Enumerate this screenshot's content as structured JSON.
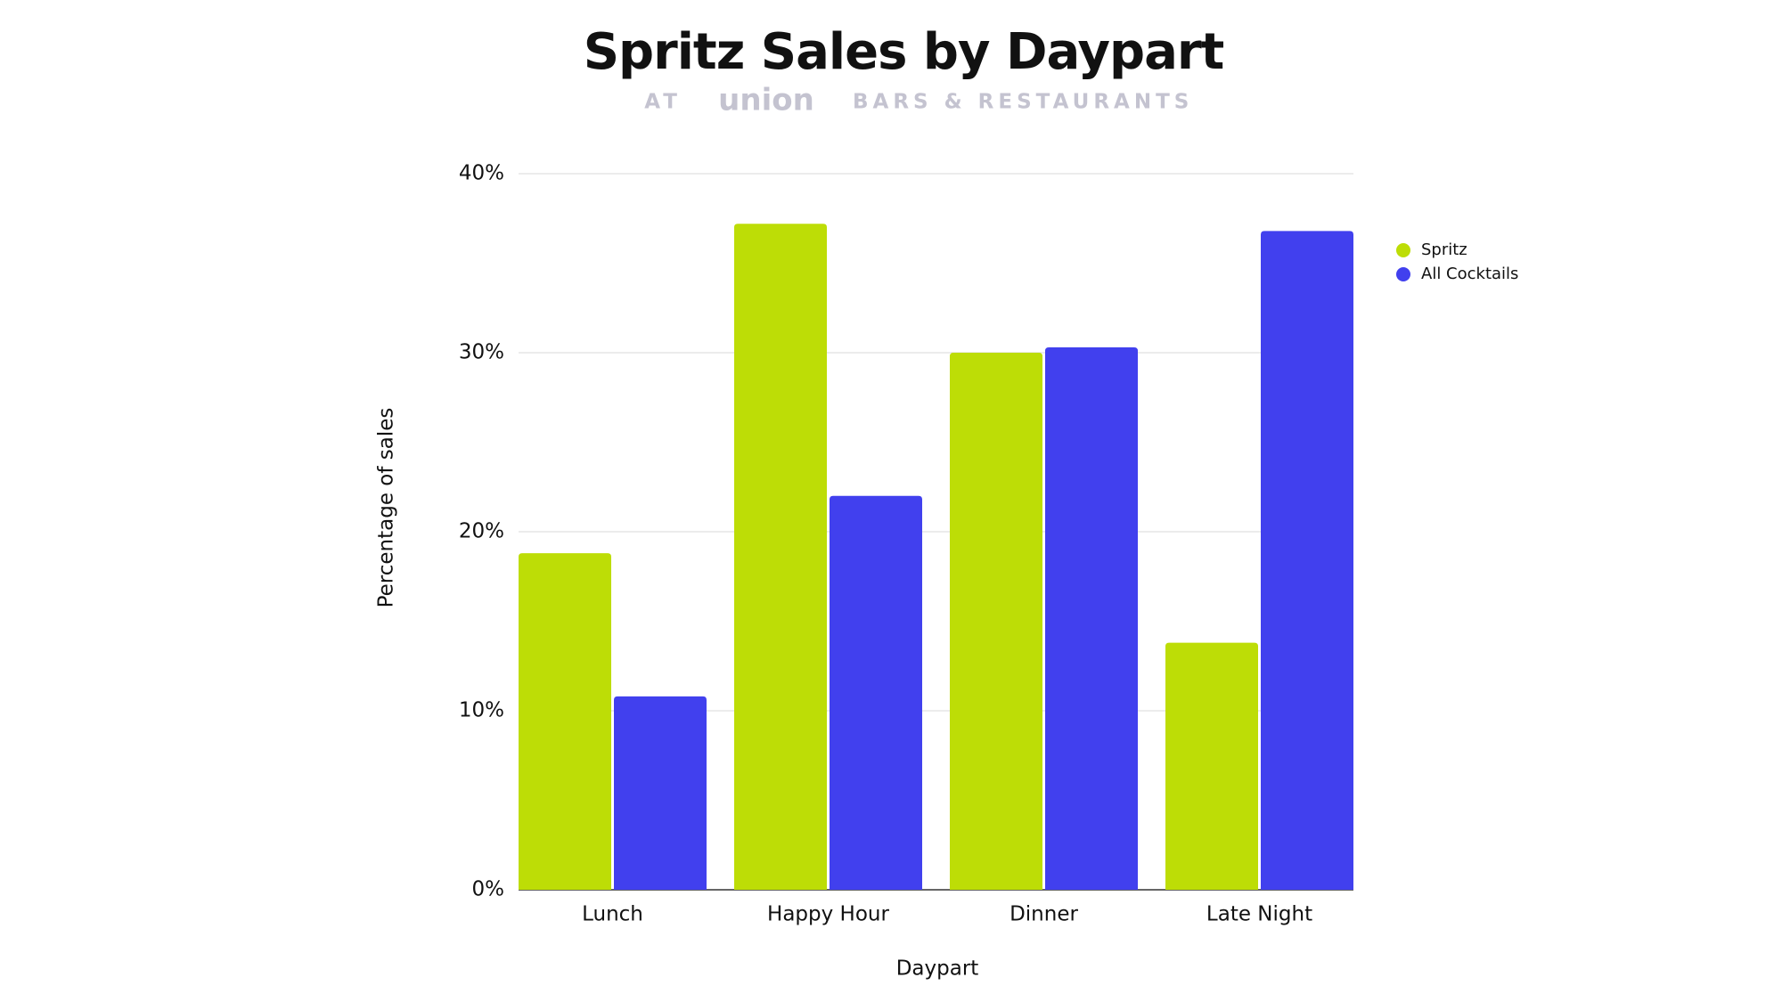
{
  "chart_data": {
    "type": "bar",
    "title": "Spritz Sales by Daypart",
    "subtitle": [
      "AT",
      "union",
      "BARS & RESTAURANTS"
    ],
    "x_label": "Daypart",
    "y_label": "Percentage of sales",
    "categories": [
      "Lunch",
      "Happy Hour",
      "Dinner",
      "Late Night"
    ],
    "series": [
      {
        "name": "Spritz",
        "color": "#bddd06",
        "values": [
          18.8,
          37.2,
          30.0,
          13.8
        ]
      },
      {
        "name": "All Cocktails",
        "color": "#4140ee",
        "values": [
          10.8,
          22.0,
          30.3,
          36.8
        ]
      }
    ],
    "ylim": [
      0,
      40
    ],
    "yticks": [
      {
        "value": 0,
        "label": "0%"
      },
      {
        "value": 10,
        "label": "10%"
      },
      {
        "value": 20,
        "label": "20%"
      },
      {
        "value": 30,
        "label": "30%"
      },
      {
        "value": 40,
        "label": "40%"
      }
    ],
    "grid": true,
    "legend": "right"
  }
}
